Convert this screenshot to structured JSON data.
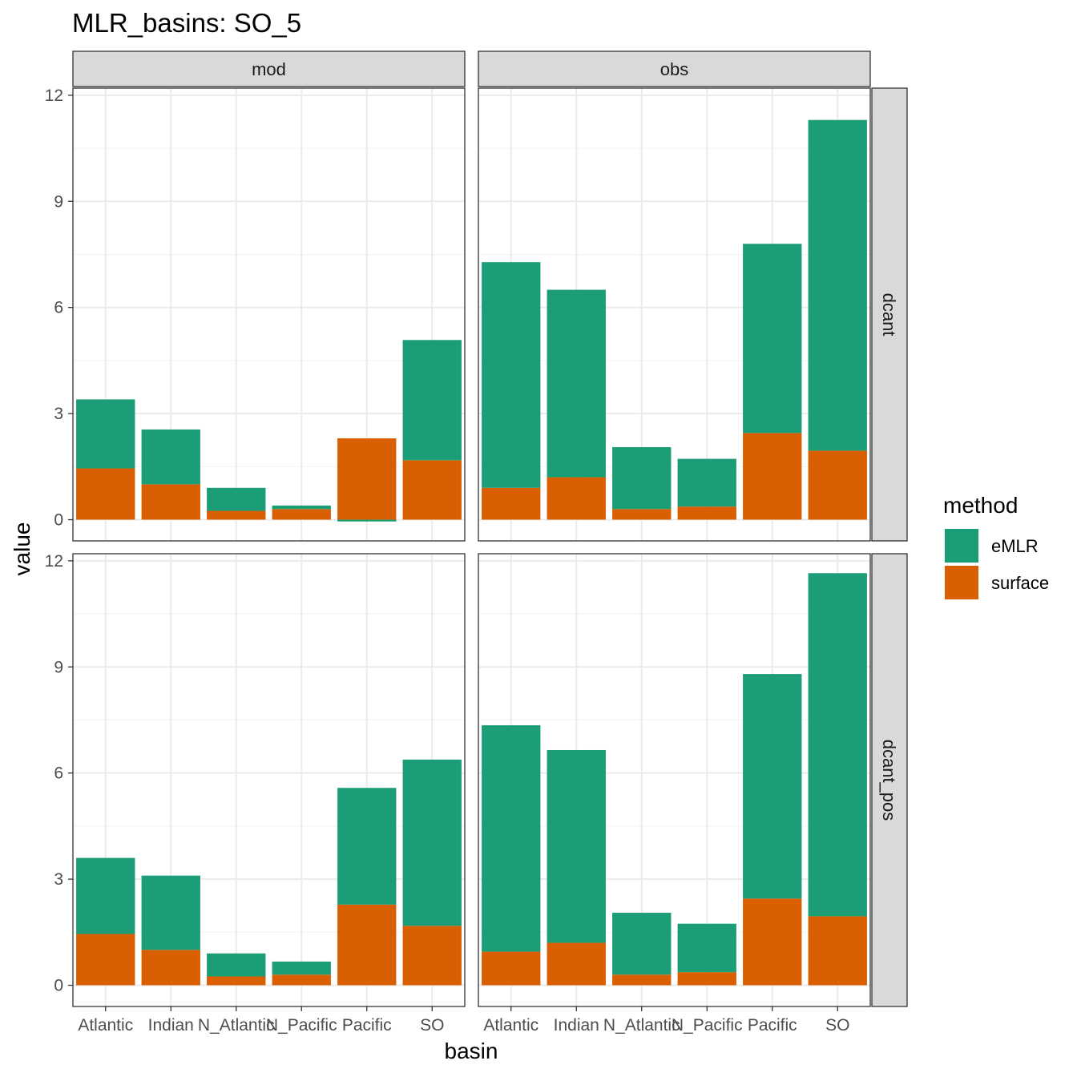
{
  "chart_data": {
    "type": "bar",
    "stacked": true,
    "title": "MLR_basins: SO_5",
    "xlabel": "basin",
    "ylabel": "value",
    "ylim": [
      -0.6,
      12.2
    ],
    "yticks": [
      0,
      3,
      6,
      9,
      12
    ],
    "grid": true,
    "legend_position": "right",
    "legend_title": "method",
    "categories": [
      "Atlantic",
      "Indian",
      "N_Atlantic",
      "N_Pacific",
      "Pacific",
      "SO"
    ],
    "col_facets": [
      "mod",
      "obs"
    ],
    "row_facets": [
      "dcant",
      "dcant_pos"
    ],
    "colors": {
      "eMLR": "#1b9e77",
      "surface": "#d95f02"
    },
    "panels": [
      {
        "col": "mod",
        "row": "dcant",
        "series": [
          {
            "name": "eMLR",
            "values": [
              1.95,
              1.55,
              0.65,
              0.1,
              -0.05,
              3.4
            ]
          },
          {
            "name": "surface",
            "values": [
              1.45,
              1.0,
              0.25,
              0.3,
              2.3,
              1.68
            ]
          }
        ]
      },
      {
        "col": "obs",
        "row": "dcant",
        "series": [
          {
            "name": "eMLR",
            "values": [
              6.38,
              5.3,
              1.75,
              1.35,
              5.35,
              9.35
            ]
          },
          {
            "name": "surface",
            "values": [
              0.9,
              1.2,
              0.3,
              0.37,
              2.45,
              1.95
            ]
          }
        ]
      },
      {
        "col": "mod",
        "row": "dcant_pos",
        "series": [
          {
            "name": "eMLR",
            "values": [
              2.15,
              2.1,
              0.65,
              0.37,
              3.3,
              4.7
            ]
          },
          {
            "name": "surface",
            "values": [
              1.45,
              1.0,
              0.25,
              0.3,
              2.28,
              1.68
            ]
          }
        ]
      },
      {
        "col": "obs",
        "row": "dcant_pos",
        "series": [
          {
            "name": "eMLR",
            "values": [
              6.4,
              5.45,
              1.75,
              1.37,
              6.35,
              9.7
            ]
          },
          {
            "name": "surface",
            "values": [
              0.95,
              1.2,
              0.3,
              0.37,
              2.45,
              1.95
            ]
          }
        ]
      }
    ]
  }
}
